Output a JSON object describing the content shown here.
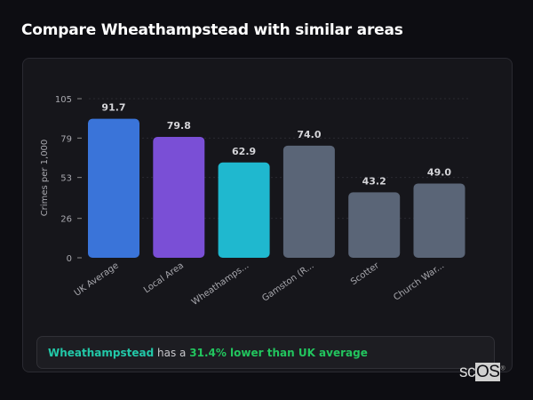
{
  "title": "Compare Wheathampstead with similar areas",
  "chart_data": {
    "type": "bar",
    "categories": [
      "UK Average",
      "Local Area",
      "Wheathamps...",
      "Gamston (R...",
      "Scotter",
      "Church War..."
    ],
    "values": [
      91.7,
      79.8,
      62.9,
      74.0,
      43.2,
      49.0
    ],
    "value_labels": [
      "91.7",
      "79.8",
      "62.9",
      "74.0",
      "43.2",
      "49.0"
    ],
    "colors": [
      "#3a74d9",
      "#7a4fd6",
      "#1fb8cf",
      "#5a6577",
      "#5a6577",
      "#5a6577"
    ],
    "ylabel": "Crimes per 1,000",
    "yticks": [
      0,
      26,
      53,
      79,
      105
    ],
    "ylim": [
      0,
      105
    ],
    "grid": true
  },
  "summary": {
    "area": "Wheathampstead",
    "connector": "has a",
    "comparison": "31.4% lower than UK average"
  },
  "logo": {
    "prefix": "sc",
    "box": "OS",
    "mark": "®"
  }
}
